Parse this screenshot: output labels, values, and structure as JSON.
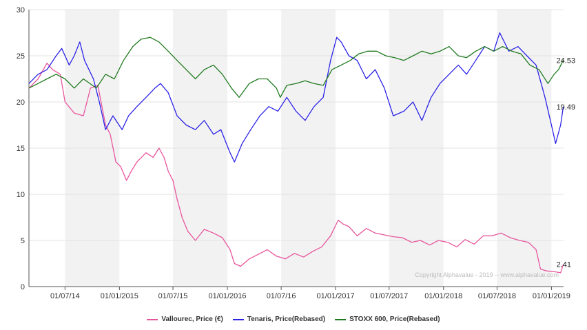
{
  "chart_data": {
    "type": "line",
    "title": "",
    "xlabel": "",
    "ylabel": "",
    "ylim": [
      0,
      30
    ],
    "yticks": [
      "0",
      "5",
      "10",
      "15",
      "20",
      "25",
      "30"
    ],
    "xticks": [
      "01/07/14",
      "01/01/2015",
      "01/07/15",
      "01/01/2016",
      "01/07/16",
      "01/01/2017",
      "01/07/2017",
      "01/01/2018",
      "01/07/2018",
      "01/01/2019"
    ],
    "grid": true,
    "legend_position": "bottom",
    "copyright": "Copyright Alphavalue - 2019 -- www.alphavalue.com",
    "series": [
      {
        "name": "Vallourec, Price (€)",
        "color": "#e8559c",
        "end_label": "2.41",
        "x": [
          "2014-03-01",
          "2014-04-01",
          "2014-05-01",
          "2014-05-20",
          "2014-06-15",
          "2014-07-01",
          "2014-08-01",
          "2014-09-01",
          "2014-09-25",
          "2014-10-20",
          "2014-11-15",
          "2014-12-01",
          "2014-12-20",
          "2015-01-05",
          "2015-01-25",
          "2015-02-10",
          "2015-03-01",
          "2015-04-01",
          "2015-04-25",
          "2015-05-15",
          "2015-06-01",
          "2015-06-15",
          "2015-07-01",
          "2015-07-15",
          "2015-08-01",
          "2015-08-20",
          "2015-09-15",
          "2015-10-15",
          "2015-11-15",
          "2015-12-15",
          "2016-01-10",
          "2016-01-25",
          "2016-02-15",
          "2016-03-15",
          "2016-04-15",
          "2016-05-15",
          "2016-06-15",
          "2016-07-15",
          "2016-08-15",
          "2016-09-15",
          "2016-10-15",
          "2016-11-15",
          "2016-12-15",
          "2017-01-10",
          "2017-01-25",
          "2017-02-15",
          "2017-03-15",
          "2017-04-15",
          "2017-05-15",
          "2017-06-15",
          "2017-07-15",
          "2017-08-15",
          "2017-09-15",
          "2017-10-15",
          "2017-11-15",
          "2017-12-15",
          "2018-01-15",
          "2018-02-15",
          "2018-03-15",
          "2018-04-15",
          "2018-05-15",
          "2018-06-15",
          "2018-07-15",
          "2018-08-15",
          "2018-09-15",
          "2018-10-15",
          "2018-11-10",
          "2018-11-25",
          "2018-12-15",
          "2019-01-15",
          "2019-02-01",
          "2019-02-10"
        ],
        "values": [
          21.5,
          22.5,
          24.2,
          23.5,
          23.0,
          20.0,
          18.8,
          18.5,
          21.5,
          21.8,
          17.5,
          16.5,
          13.5,
          13.0,
          11.5,
          12.5,
          13.5,
          14.5,
          14.0,
          15.0,
          14.0,
          12.5,
          11.5,
          9.5,
          7.5,
          6.0,
          5.0,
          6.2,
          5.8,
          5.3,
          4.0,
          2.5,
          2.2,
          3.0,
          3.5,
          4.0,
          3.3,
          3.0,
          3.6,
          3.2,
          3.8,
          4.3,
          5.5,
          7.2,
          6.8,
          6.5,
          5.5,
          6.3,
          5.8,
          5.6,
          5.4,
          5.3,
          4.8,
          5.0,
          4.5,
          5.0,
          4.8,
          4.3,
          5.1,
          4.6,
          5.5,
          5.5,
          5.8,
          5.3,
          5.0,
          4.8,
          4.0,
          1.9,
          1.7,
          1.6,
          1.5,
          2.41
        ]
      },
      {
        "name": "Tenaris, Price(Rebased)",
        "color": "#2b22e8",
        "end_label": "19.49",
        "x": [
          "2014-03-01",
          "2014-04-01",
          "2014-05-01",
          "2014-06-01",
          "2014-06-20",
          "2014-07-15",
          "2014-08-01",
          "2014-08-20",
          "2014-09-05",
          "2014-10-05",
          "2014-10-25",
          "2014-11-15",
          "2014-12-10",
          "2015-01-10",
          "2015-02-01",
          "2015-03-01",
          "2015-04-01",
          "2015-05-01",
          "2015-05-20",
          "2015-06-15",
          "2015-07-15",
          "2015-08-15",
          "2015-09-15",
          "2015-10-15",
          "2015-11-15",
          "2015-12-10",
          "2016-01-10",
          "2016-01-25",
          "2016-02-20",
          "2016-03-20",
          "2016-04-20",
          "2016-05-20",
          "2016-06-20",
          "2016-07-20",
          "2016-08-20",
          "2016-09-20",
          "2016-10-20",
          "2016-11-20",
          "2016-12-15",
          "2017-01-05",
          "2017-01-20",
          "2017-02-15",
          "2017-03-15",
          "2017-04-15",
          "2017-05-15",
          "2017-06-15",
          "2017-07-15",
          "2017-08-20",
          "2017-09-20",
          "2017-10-20",
          "2017-11-20",
          "2017-12-20",
          "2018-01-20",
          "2018-02-20",
          "2018-03-20",
          "2018-04-20",
          "2018-05-20",
          "2018-06-20",
          "2018-07-10",
          "2018-08-10",
          "2018-09-10",
          "2018-10-10",
          "2018-11-10",
          "2018-12-10",
          "2019-01-01",
          "2019-01-15",
          "2019-02-01",
          "2019-02-10"
        ],
        "values": [
          22.0,
          23.0,
          23.5,
          25.0,
          25.8,
          24.0,
          25.0,
          26.5,
          24.5,
          22.5,
          20.0,
          17.0,
          18.5,
          17.0,
          18.5,
          19.5,
          20.5,
          21.5,
          22.0,
          21.0,
          18.5,
          17.5,
          17.0,
          18.0,
          16.5,
          17.0,
          14.5,
          13.5,
          15.5,
          17.0,
          18.5,
          19.5,
          19.0,
          20.5,
          19.0,
          18.0,
          19.5,
          20.5,
          24.5,
          27.0,
          26.5,
          25.0,
          24.5,
          22.5,
          23.5,
          21.5,
          18.5,
          19.0,
          20.0,
          18.0,
          20.5,
          22.0,
          23.0,
          24.0,
          23.0,
          24.5,
          26.0,
          25.5,
          27.5,
          25.5,
          26.0,
          25.0,
          24.0,
          20.5,
          17.5,
          15.5,
          17.5,
          19.49
        ]
      },
      {
        "name": "STOXX 600, Price(Rebased)",
        "color": "#1f7a1f",
        "end_label": "24.53",
        "x": [
          "2014-03-01",
          "2014-04-01",
          "2014-05-01",
          "2014-06-01",
          "2014-07-01",
          "2014-08-01",
          "2014-09-01",
          "2014-10-15",
          "2014-11-15",
          "2014-12-15",
          "2015-01-15",
          "2015-02-15",
          "2015-03-15",
          "2015-04-15",
          "2015-05-15",
          "2015-06-15",
          "2015-07-15",
          "2015-08-15",
          "2015-09-15",
          "2015-10-15",
          "2015-11-15",
          "2015-12-15",
          "2016-01-15",
          "2016-02-10",
          "2016-03-15",
          "2016-04-15",
          "2016-05-15",
          "2016-06-15",
          "2016-06-28",
          "2016-07-20",
          "2016-08-20",
          "2016-09-20",
          "2016-10-20",
          "2016-11-20",
          "2016-12-20",
          "2017-01-20",
          "2017-02-20",
          "2017-03-20",
          "2017-04-20",
          "2017-05-20",
          "2017-06-20",
          "2017-07-20",
          "2017-08-20",
          "2017-09-20",
          "2017-10-20",
          "2017-11-20",
          "2017-12-20",
          "2018-01-20",
          "2018-02-20",
          "2018-03-20",
          "2018-04-20",
          "2018-05-20",
          "2018-06-20",
          "2018-07-20",
          "2018-08-20",
          "2018-09-20",
          "2018-10-20",
          "2018-11-20",
          "2018-12-20",
          "2019-01-10",
          "2019-01-25",
          "2019-02-10"
        ],
        "values": [
          21.5,
          22.0,
          22.5,
          23.0,
          22.5,
          21.5,
          22.5,
          21.5,
          23.0,
          22.5,
          24.5,
          26.0,
          26.8,
          27.0,
          26.5,
          25.5,
          24.5,
          23.5,
          22.5,
          23.5,
          24.0,
          23.0,
          21.5,
          20.5,
          22.0,
          22.5,
          22.5,
          21.5,
          20.5,
          21.8,
          22.0,
          22.3,
          22.0,
          21.8,
          23.5,
          24.0,
          24.5,
          25.2,
          25.5,
          25.5,
          25.0,
          24.8,
          24.5,
          25.0,
          25.5,
          25.2,
          25.5,
          26.0,
          25.0,
          24.8,
          25.5,
          26.0,
          25.5,
          26.0,
          25.5,
          25.2,
          24.0,
          23.5,
          22.0,
          23.0,
          23.5,
          24.53
        ]
      }
    ]
  }
}
